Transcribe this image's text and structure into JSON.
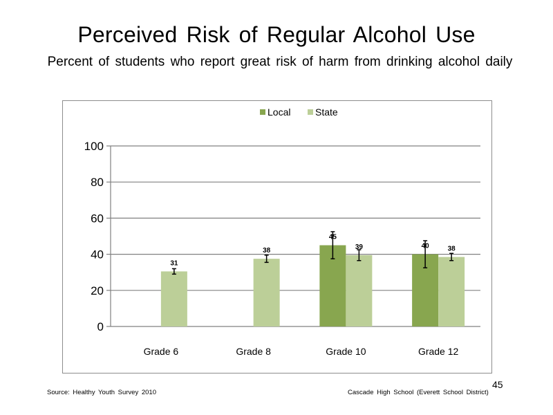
{
  "slide": {
    "title": "Perceived  Risk of Regular  Alcohol  Use",
    "subtitle": "Percent of students  who report great risk of harm  from drinking  alcohol daily",
    "page_number": "45",
    "source": "Source: Healthy Youth Survey 2010",
    "school": "Cascade High School (Everett School District)"
  },
  "colors": {
    "local": "#88a64f",
    "state": "#bccf98",
    "grid": "#808080",
    "axis": "#808080"
  },
  "chart_data": {
    "type": "bar",
    "title": "",
    "xlabel": "",
    "ylabel": "",
    "ylim": [
      0,
      100
    ],
    "yticks": [
      "0",
      "20",
      "40",
      "60",
      "80",
      "100"
    ],
    "ytick_values": [
      0,
      20,
      40,
      60,
      80,
      100
    ],
    "grid": true,
    "legend_position": "top-center",
    "categories": [
      "Grade 6",
      "Grade 8",
      "Grade 10",
      "Grade 12"
    ],
    "series": [
      {
        "name": "Local",
        "values": [
          null,
          null,
          45,
          40
        ],
        "labels": [
          "",
          "",
          "45",
          "40"
        ],
        "error_low": [
          null,
          null,
          37.5,
          32.5
        ],
        "error_high": [
          null,
          null,
          52.5,
          47.5
        ]
      },
      {
        "name": "State",
        "values": [
          30.5,
          37.5,
          39.5,
          38.5
        ],
        "labels": [
          "31",
          "38",
          "39",
          "38"
        ],
        "error_low": [
          29,
          35.5,
          36.5,
          36.5
        ],
        "error_high": [
          32,
          39.5,
          42.5,
          40.5
        ]
      }
    ]
  }
}
